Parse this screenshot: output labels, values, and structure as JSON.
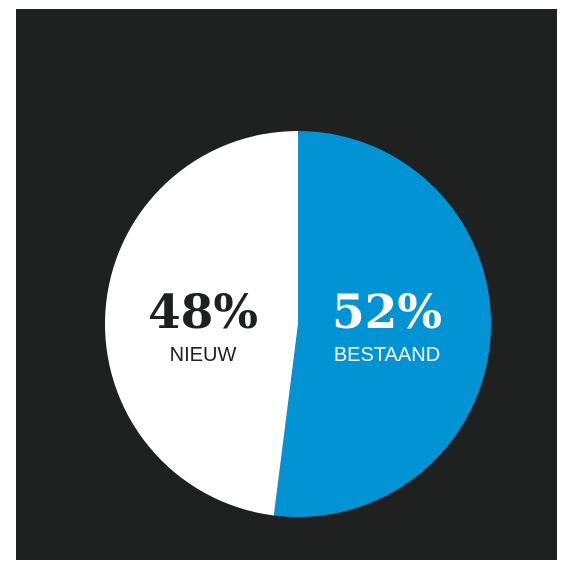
{
  "chart_data": {
    "type": "pie",
    "slices": [
      {
        "label": "NIEUW",
        "value": 48,
        "value_text": "48%",
        "color": "#ffffff",
        "text_color": "#1f2020"
      },
      {
        "label": "BESTAAND",
        "value": 52,
        "value_text": "52%",
        "color": "#0293d4",
        "text_color": "#ffffff"
      }
    ],
    "start_angle_deg": 0,
    "direction": "clockwise"
  },
  "colors": {
    "background": "#1f2020"
  }
}
